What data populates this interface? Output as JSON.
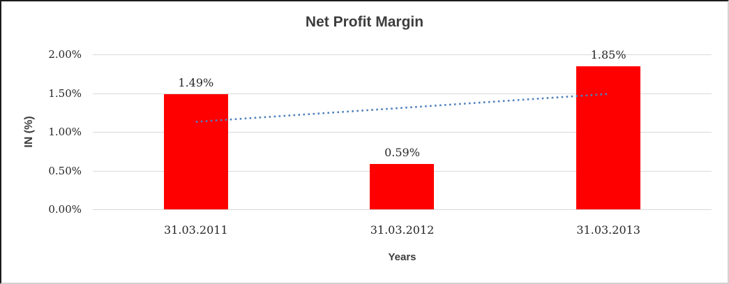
{
  "frame": {
    "background": "#ffffff",
    "border_dark": "#1c1c1c",
    "border_light": "#d2d2d2"
  },
  "chart_data": {
    "type": "bar",
    "title": "Net Profit Margin",
    "xlabel": "Years",
    "ylabel": "IN (%)",
    "categories": [
      "31.03.2011",
      "31.03.2012",
      "31.03.2013"
    ],
    "values": [
      1.49,
      0.59,
      1.85
    ],
    "data_labels": [
      "1.49%",
      "0.59%",
      "1.85%"
    ],
    "ylim": [
      0,
      2.0
    ],
    "y_ticks": [
      {
        "label": "2.00%",
        "value": 2.0
      },
      {
        "label": "1.50%",
        "value": 1.5
      },
      {
        "label": "1.00%",
        "value": 1.0
      },
      {
        "label": "0.50%",
        "value": 0.5
      },
      {
        "label": "0.00%",
        "value": 0.0
      }
    ],
    "grid": true,
    "legend_position": "none",
    "bar_color": "#ff0000",
    "gridline_color": "#d9d9d9",
    "title_color": "#3d3d3d",
    "tick_text_color": "#262626",
    "trendline": {
      "type": "linear",
      "style": "dotted",
      "color": "#4f81bd",
      "start_value": 1.13,
      "end_value": 1.49
    }
  }
}
